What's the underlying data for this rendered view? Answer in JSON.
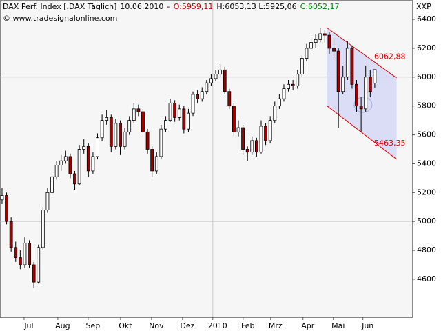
{
  "chart_data": {
    "type": "candlestick",
    "header": [
      {
        "text": "DAX Perf. Index [.DAX Täglich]",
        "color": "#000000"
      },
      {
        "text": "10.06.2010",
        "color": "#000000"
      },
      {
        "text": "-",
        "color": "#000000"
      },
      {
        "text": "O:5959,11",
        "color": "#cc0000"
      },
      {
        "text": "H:6053,13 L:5925,06",
        "color": "#000000"
      },
      {
        "text": "C:6052,17",
        "color": "#008800"
      }
    ],
    "copyright": "© www.tradesignalonline.com",
    "axis_label": "XXP",
    "up_color": "#ffffff",
    "down_color": "#a00000",
    "open": [
      5150,
      5180,
      5000,
      4820,
      4750,
      4700,
      4850,
      4700,
      4580,
      4820,
      5080,
      5200,
      5310,
      5390,
      5420,
      5450,
      5330,
      5260,
      5500,
      5520,
      5350,
      5450,
      5580,
      5700,
      5720,
      5520,
      5680,
      5520,
      5620,
      5700,
      5780,
      5760,
      5620,
      5500,
      5350,
      5450,
      5640,
      5700,
      5820,
      5720,
      5780,
      5640,
      5750,
      5880,
      5850,
      5900,
      5960,
      5990,
      6020,
      6050,
      5900,
      5800,
      5620,
      5650,
      5500,
      5480,
      5560,
      5480,
      5660,
      5560,
      5700,
      5800,
      5850,
      5920,
      5950,
      5940,
      6020,
      6130,
      6200,
      6240,
      6260,
      6300,
      6290,
      6200,
      6180,
      5900,
      6000,
      6200,
      5950,
      5800,
      5780,
      6000,
      5959.11
    ],
    "high": [
      5230,
      5200,
      5030,
      4860,
      4800,
      4890,
      4870,
      4720,
      4840,
      5100,
      5230,
      5330,
      5420,
      5460,
      5490,
      5470,
      5350,
      5530,
      5570,
      5540,
      5480,
      5610,
      5740,
      5770,
      5740,
      5710,
      5700,
      5650,
      5730,
      5820,
      5810,
      5780,
      5640,
      5520,
      5480,
      5670,
      5730,
      5850,
      5840,
      5810,
      5800,
      5780,
      5900,
      5910,
      5930,
      5980,
      6020,
      6050,
      6090,
      6070,
      5920,
      5820,
      5700,
      5670,
      5520,
      5590,
      5580,
      5700,
      5680,
      5730,
      5830,
      5880,
      5950,
      5980,
      5980,
      6050,
      6150,
      6230,
      6280,
      6300,
      6340,
      6330,
      6310,
      6270,
      6200,
      6080,
      6250,
      6220,
      5980,
      5860,
      6080,
      6050,
      6053.13
    ],
    "low": [
      5120,
      4980,
      4790,
      4720,
      4670,
      4680,
      4680,
      4540,
      4570,
      4800,
      5060,
      5180,
      5290,
      5350,
      5400,
      5300,
      5220,
      5250,
      5470,
      5310,
      5330,
      5430,
      5560,
      5670,
      5480,
      5500,
      5460,
      5500,
      5600,
      5680,
      5730,
      5590,
      5470,
      5310,
      5330,
      5430,
      5620,
      5690,
      5690,
      5700,
      5610,
      5620,
      5730,
      5820,
      5830,
      5880,
      5940,
      5970,
      6000,
      5880,
      5780,
      5590,
      5590,
      5460,
      5420,
      5460,
      5450,
      5470,
      5530,
      5540,
      5680,
      5780,
      5830,
      5900,
      5910,
      5920,
      6000,
      6110,
      6180,
      6200,
      6240,
      6240,
      6160,
      6120,
      5650,
      5880,
      5980,
      5920,
      5760,
      5620,
      5760,
      5860,
      5925.06
    ],
    "close": [
      5180,
      5000,
      4820,
      4750,
      4700,
      4850,
      4700,
      4580,
      4820,
      5080,
      5200,
      5310,
      5390,
      5420,
      5450,
      5330,
      5260,
      5500,
      5520,
      5350,
      5450,
      5580,
      5700,
      5720,
      5520,
      5680,
      5520,
      5620,
      5700,
      5780,
      5760,
      5620,
      5500,
      5350,
      5450,
      5640,
      5700,
      5820,
      5720,
      5780,
      5640,
      5750,
      5880,
      5850,
      5900,
      5960,
      5990,
      6020,
      6050,
      5900,
      5800,
      5620,
      5650,
      5500,
      5480,
      5560,
      5480,
      5660,
      5560,
      5700,
      5800,
      5850,
      5920,
      5950,
      5940,
      6020,
      6130,
      6200,
      6240,
      6260,
      6300,
      6290,
      6200,
      6180,
      5900,
      6000,
      6200,
      5950,
      5800,
      5780,
      6000,
      5900,
      6052.17
    ],
    "xlim": [
      -0.45,
      90.2
    ],
    "xticks": [
      {
        "value": 4.85,
        "label": "Jul"
      },
      {
        "value": 12.27,
        "label": "Aug"
      },
      {
        "value": 18.94,
        "label": "Sep"
      },
      {
        "value": 26.06,
        "label": "Okt"
      },
      {
        "value": 32.88,
        "label": "Nov"
      },
      {
        "value": 39.7,
        "label": "Dez"
      },
      {
        "value": 46.36,
        "label": "2010"
      },
      {
        "value": 53.03,
        "label": "Feb"
      },
      {
        "value": 59.09,
        "label": "Mrz"
      },
      {
        "value": 66.21,
        "label": "Apr"
      },
      {
        "value": 72.88,
        "label": "Mai"
      },
      {
        "value": 79.39,
        "label": "Jun"
      }
    ],
    "ylim": [
      4337,
      6534
    ],
    "yticks": [
      4600,
      4800,
      5000,
      5200,
      5400,
      5600,
      5800,
      6000,
      6200,
      6400
    ],
    "ygrid": [
      5000,
      6000
    ],
    "xgrid": [
      46.36
    ],
    "channel": {
      "color": "#e00000",
      "fill": "#d0d4f4",
      "x": [
        71.4,
        86.8
      ],
      "upper": [
        6343,
        5994
      ],
      "lower": [
        5803,
        5431
      ],
      "labels": [
        {
          "value": 6062.88,
          "label": "6062,88"
        },
        {
          "value": 5463.35,
          "label": "5463,35"
        }
      ]
    }
  }
}
